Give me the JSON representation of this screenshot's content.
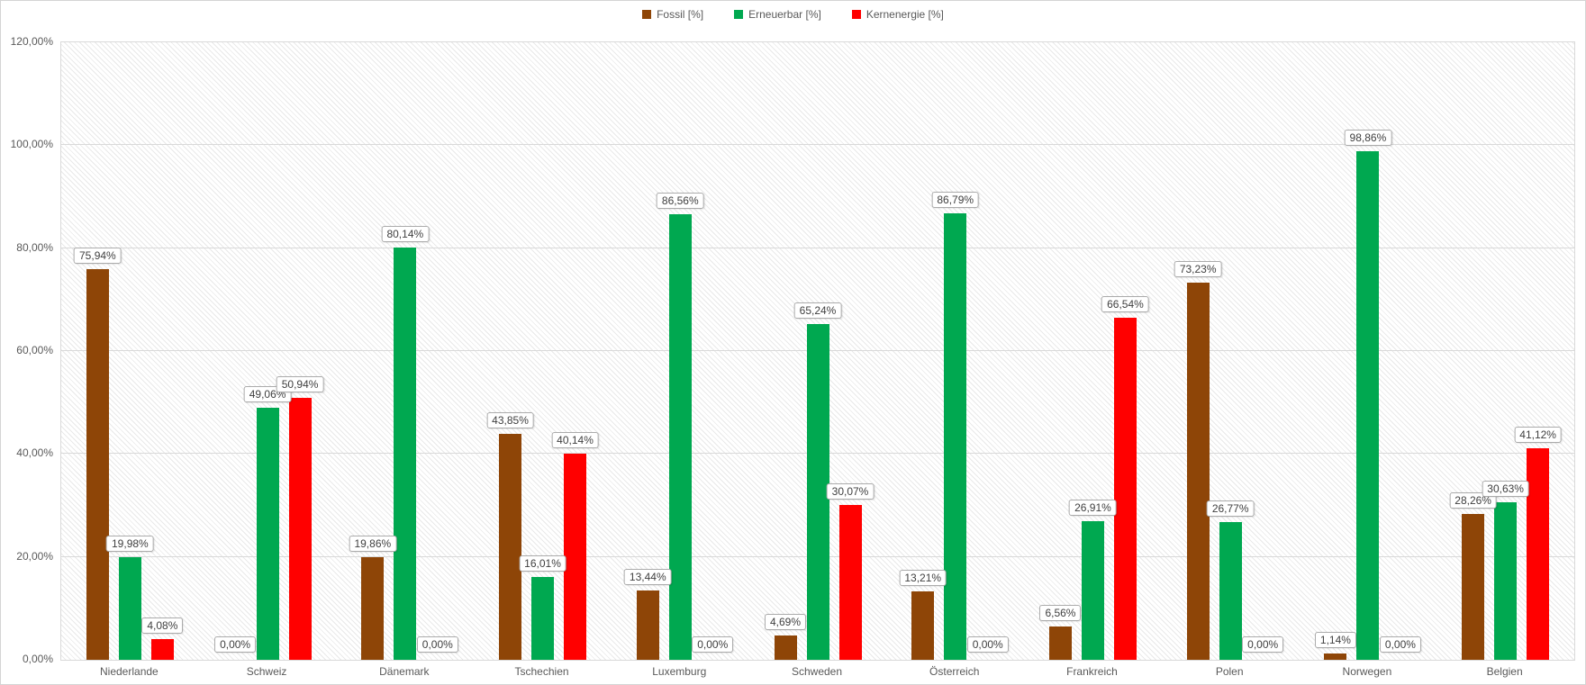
{
  "chart_data": {
    "type": "bar",
    "title": "",
    "xlabel": "",
    "ylabel": "",
    "ylim": [
      0,
      120
    ],
    "grid": true,
    "legend_position": "top-center",
    "ytick_labels": [
      "0,00%",
      "20,00%",
      "40,00%",
      "60,00%",
      "80,00%",
      "100,00%",
      "120,00%"
    ],
    "ytick_values": [
      0,
      20,
      40,
      60,
      80,
      100,
      120
    ],
    "categories": [
      "Niederlande",
      "Schweiz",
      "Dänemark",
      "Tschechien",
      "Luxemburg",
      "Schweden",
      "Österreich",
      "Frankreich",
      "Polen",
      "Norwegen",
      "Belgien"
    ],
    "series": [
      {
        "name": "Fossil [%]",
        "color": "#8E4507",
        "values": [
          75.94,
          0.0,
          19.86,
          43.85,
          13.44,
          4.69,
          13.21,
          6.56,
          73.23,
          1.14,
          28.26
        ]
      },
      {
        "name": "Erneuerbar [%]",
        "color": "#00A850",
        "values": [
          19.98,
          49.06,
          80.14,
          16.01,
          86.56,
          65.24,
          86.79,
          26.91,
          26.77,
          98.86,
          30.63
        ]
      },
      {
        "name": "Kernenergie [%]",
        "color": "#FF0000",
        "values": [
          4.08,
          50.94,
          0.0,
          40.14,
          0.0,
          30.07,
          0.0,
          66.54,
          0.0,
          0.0,
          41.12
        ]
      }
    ],
    "data_label_format": "decimal-comma-percent-2dp",
    "colors": {
      "gridline": "#d9d9d9",
      "plot_border": "#d9d9d9",
      "hatch_line": "#e9e9e9",
      "axis_text": "#595959",
      "data_label_text": "#3f3f3f",
      "data_label_border": "#ababab"
    }
  }
}
